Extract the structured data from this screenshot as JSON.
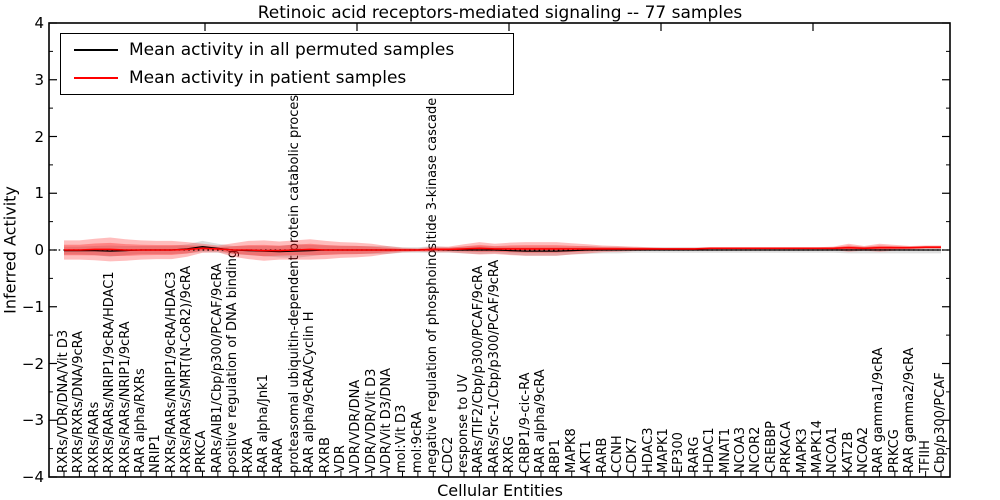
{
  "chart_data": {
    "type": "line",
    "title": "Retinoic acid receptors-mediated signaling -- 77 samples",
    "xlabel": "Cellular Entities",
    "ylabel": "Inferred Activity",
    "ylim": [
      -4,
      4
    ],
    "yticks": [
      4,
      3,
      2,
      1,
      0,
      -1,
      -2,
      -3,
      -4
    ],
    "grid": false,
    "legend_position": "upper left",
    "legend": [
      {
        "label": "Mean activity in all permuted samples",
        "color": "#000000"
      },
      {
        "label": "Mean activity in patient samples",
        "color": "#ff0000"
      }
    ],
    "zero_line": {
      "value": 0,
      "style": "dotted",
      "color": "#000000"
    },
    "categories": [
      "RXRs/VDR/DNA/Vit D3",
      "RXRs/RXRs/DNA/9cRA",
      "RXRs/RARs",
      "RXRs/RARs/NRIP1/9cRA/HDAC1",
      "RXRs/RARs/NRIP1/9cRA",
      "RAR alpha/RXRs",
      "NRIP1",
      "RXRs/RARs/NRIP1/9cRA/HDAC3",
      "RXRs/RARs/SMRT(N-CoR2)/9cRA",
      "PRKCA",
      "RARs/AIB1/Cbp/p300/PCAF/9cRA",
      "positive regulation of DNA binding",
      "RXRA",
      "RAR alpha/Jnk1",
      "RARA",
      "proteasomal ubiquitin-dependent protein catabolic process",
      "RAR alpha/9cRA/Cyclin H",
      "RXRB",
      "VDR",
      "VDR/VDR/DNA",
      "VDR/VDR/Vit D3",
      "VDR/Vit D3/DNA",
      "mol:Vit D3",
      "mol:9cRA",
      "negative regulation of phosphoinositide 3-kinase cascade",
      "CDC2",
      "response to UV",
      "RARs/TIF2/Cbp/p300/PCAF/9cRA",
      "RARs/Src-1/Cbp/p300/PCAF/9cRA",
      "RXRG",
      "CRBP1/9-cic-RA",
      "RAR alpha/9cRA",
      "RBP1",
      "MAPK8",
      "AKT1",
      "RARB",
      "CCNH",
      "CDK7",
      "HDAC3",
      "MAPK1",
      "EP300",
      "RARG",
      "HDAC1",
      "MNAT1",
      "NCOA3",
      "NCOR2",
      "CREBBP",
      "PRKACA",
      "MAPK3",
      "MAPK14",
      "NCOA1",
      "KAT2B",
      "NCOA2",
      "RAR gamma1/9cRA",
      "PRKCG",
      "RAR gamma2/9cRA",
      "TFIIH",
      "Cbp/p300/PCAF"
    ],
    "series": [
      {
        "name": "Mean activity in all permuted samples",
        "color": "#000000",
        "values": [
          -0.01,
          -0.01,
          -0.01,
          -0.02,
          -0.01,
          0,
          0,
          0,
          0.02,
          0.06,
          0.03,
          0,
          -0.01,
          -0.02,
          -0.03,
          -0.02,
          -0.01,
          0,
          0,
          0,
          0,
          0,
          0,
          0,
          0.01,
          0,
          0,
          0,
          0,
          -0.01,
          -0.02,
          -0.02,
          -0.02,
          -0.01,
          0,
          0,
          0,
          0,
          0,
          0,
          0,
          0,
          0,
          0,
          0,
          0,
          0,
          0,
          0,
          0,
          0,
          0,
          0,
          0,
          0,
          0,
          0,
          0
        ]
      },
      {
        "name": "Mean activity in patient samples",
        "color": "#ff0000",
        "values": [
          0,
          0,
          0.01,
          0.01,
          0,
          0,
          0,
          0,
          0.01,
          0.03,
          0.02,
          0,
          0,
          -0.01,
          -0.01,
          0,
          0.01,
          0,
          0,
          0,
          0,
          0,
          0,
          0,
          0.01,
          0.01,
          0.02,
          0.03,
          0.02,
          0.02,
          0.02,
          0.02,
          0.02,
          0.02,
          0.02,
          0.02,
          0.02,
          0.02,
          0.02,
          0.02,
          0.02,
          0.02,
          0.03,
          0.03,
          0.03,
          0.03,
          0.03,
          0.03,
          0.03,
          0.03,
          0.03,
          0.04,
          0.03,
          0.04,
          0.04,
          0.04,
          0.05,
          0.05
        ]
      }
    ],
    "bands": [
      {
        "name": "permuted samples std band",
        "color": "rgba(110,110,110,0.22)",
        "center_series": 0,
        "half_widths": [
          0.07,
          0.07,
          0.08,
          0.1,
          0.08,
          0.07,
          0.07,
          0.07,
          0.08,
          0.1,
          0.08,
          0.07,
          0.08,
          0.09,
          0.1,
          0.12,
          0.1,
          0.08,
          0.07,
          0.07,
          0.07,
          0.07,
          0.05,
          0.05,
          0.06,
          0.05,
          0.06,
          0.07,
          0.06,
          0.07,
          0.08,
          0.08,
          0.08,
          0.07,
          0.07,
          0.06,
          0.06,
          0.05,
          0.05,
          0.05,
          0.05,
          0.05,
          0.05,
          0.05,
          0.05,
          0.05,
          0.05,
          0.05,
          0.05,
          0.05,
          0.05,
          0.06,
          0.06,
          0.06,
          0.06,
          0.06,
          0.06,
          0.06
        ]
      },
      {
        "name": "patient samples std band",
        "color": "rgba(255,0,0,0.26)",
        "center_series": 1,
        "half_widths": [
          0.17,
          0.17,
          0.19,
          0.21,
          0.19,
          0.17,
          0.16,
          0.16,
          0.13,
          0.08,
          0.06,
          0.12,
          0.16,
          0.18,
          0.16,
          0.17,
          0.18,
          0.16,
          0.14,
          0.13,
          0.11,
          0.07,
          0.04,
          0.03,
          0.05,
          0.05,
          0.08,
          0.11,
          0.09,
          0.11,
          0.12,
          0.12,
          0.12,
          0.1,
          0.08,
          0.06,
          0.05,
          0.04,
          0.03,
          0.02,
          0.02,
          0.02,
          0.02,
          0.02,
          0.02,
          0.02,
          0.02,
          0.02,
          0.02,
          0.02,
          0.03,
          0.07,
          0.04,
          0.07,
          0.05,
          0.03,
          0.03,
          0.03
        ]
      }
    ]
  }
}
